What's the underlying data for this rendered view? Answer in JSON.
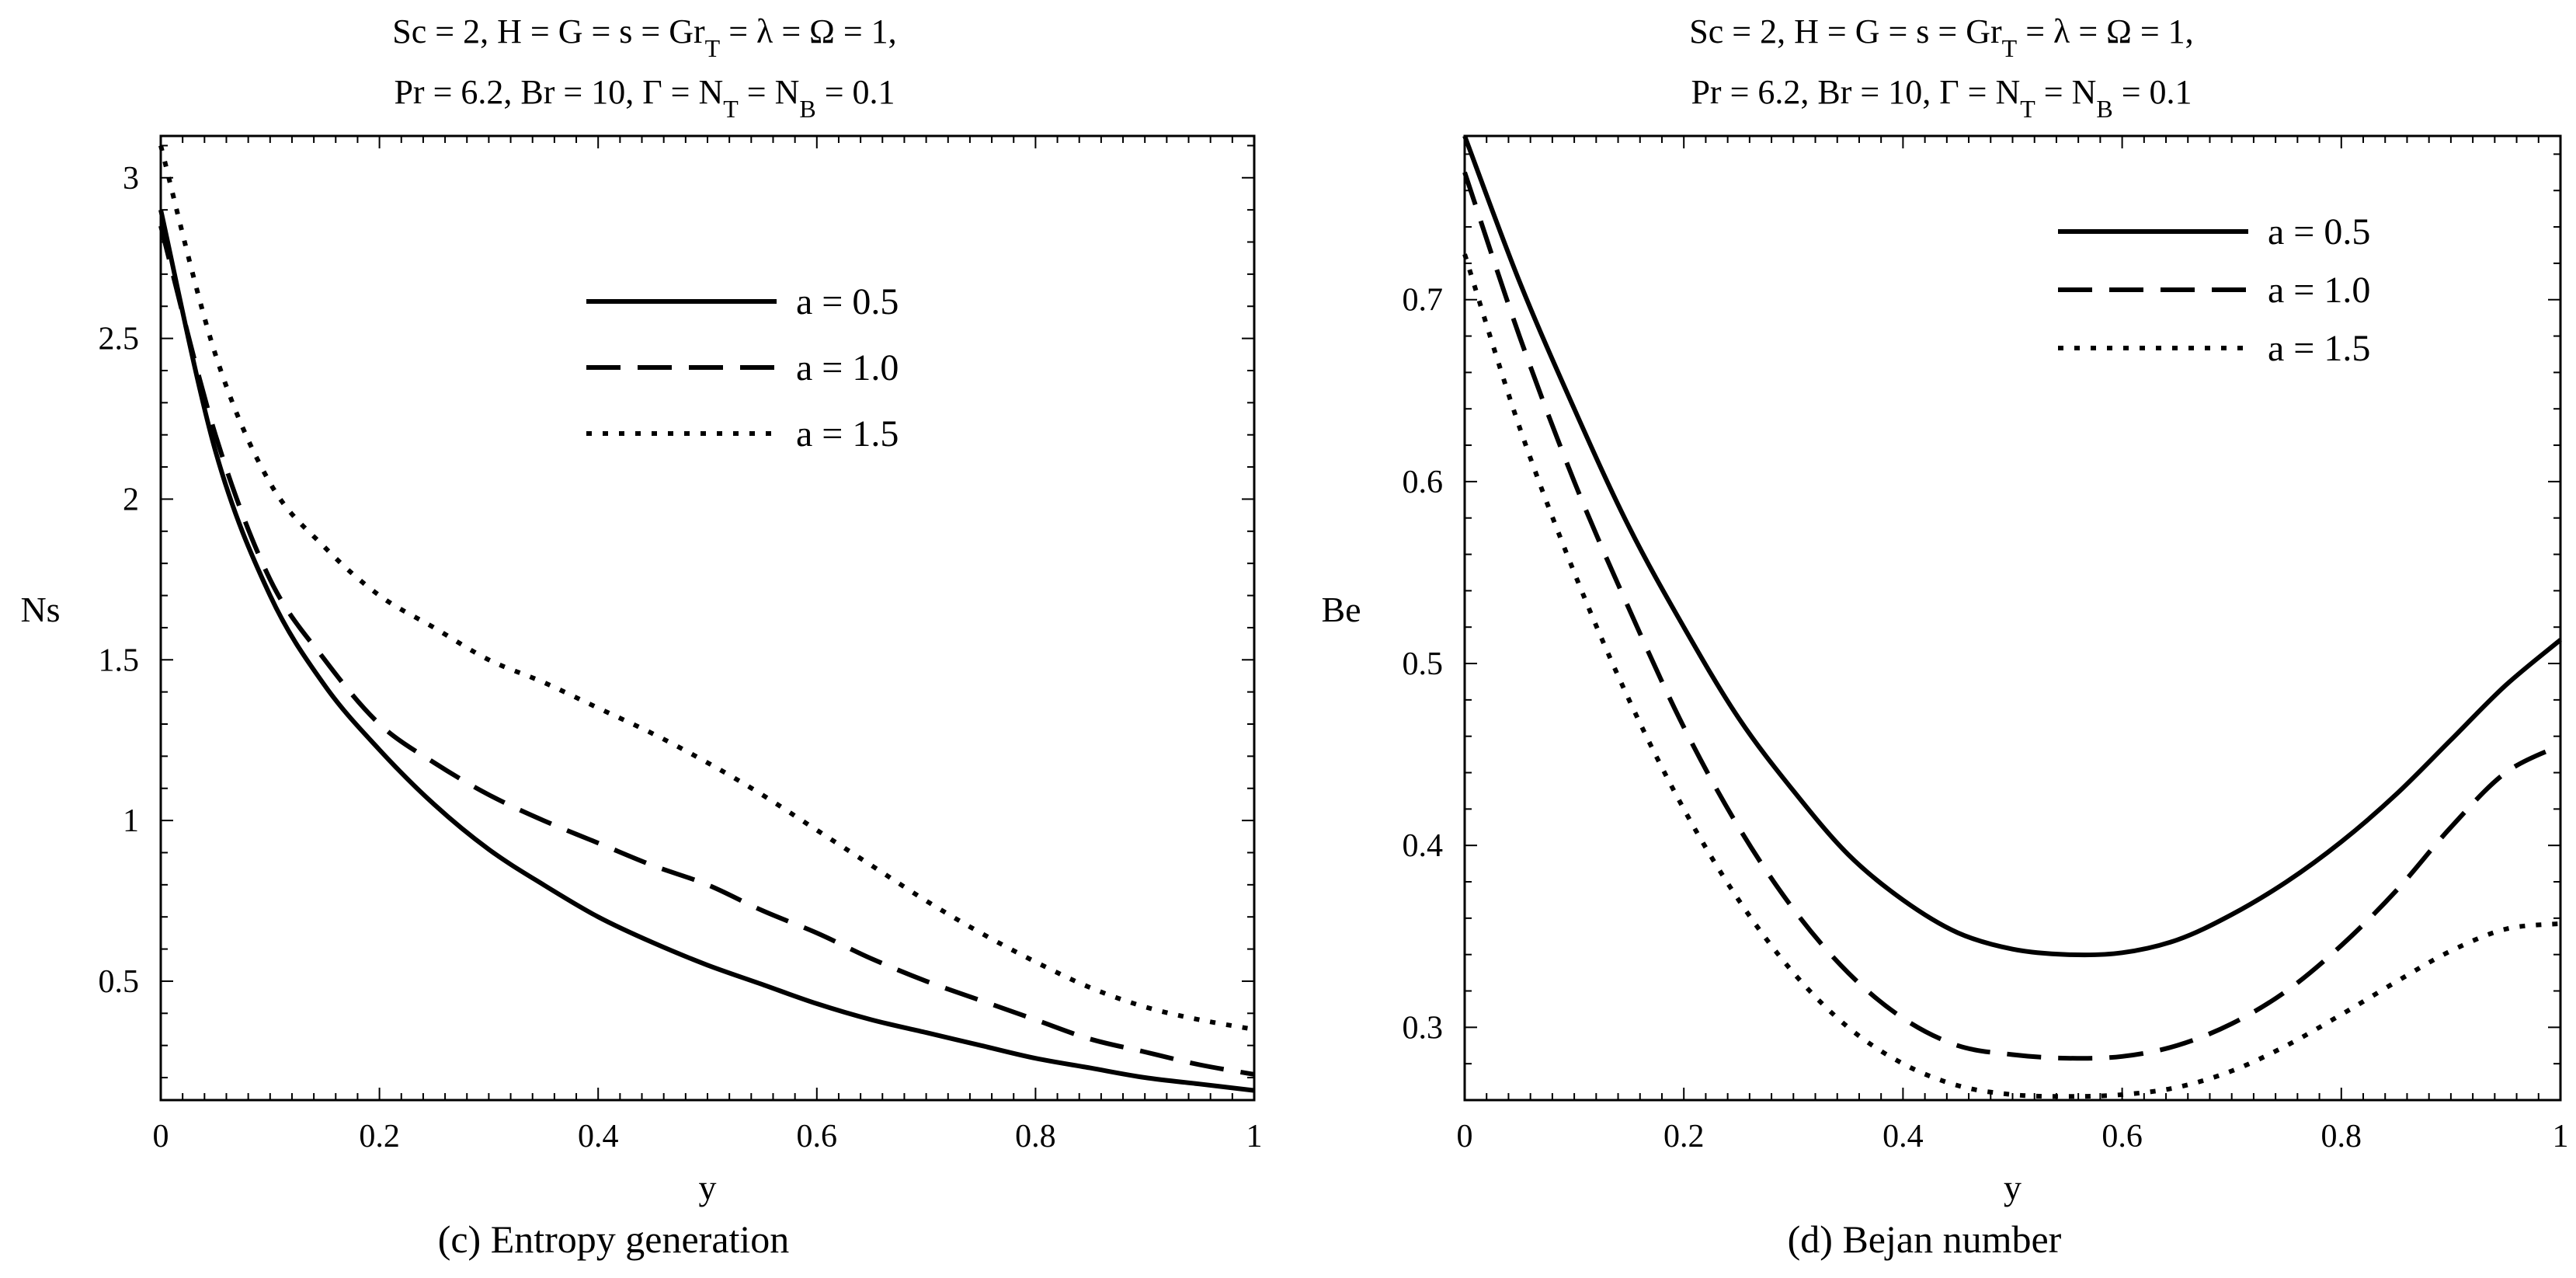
{
  "chart_data": [
    {
      "type": "line",
      "panel_label": "(c)  Entropy generation",
      "title_lines": [
        [
          "Sc = 2, H = G = s = Gr",
          "T",
          " = λ = Ω =  1,"
        ],
        [
          "Pr = 6.2, Br = 10, Γ = N",
          "T",
          " = N",
          "B",
          " = 0.1"
        ]
      ],
      "xlabel": "y",
      "ylabel": "Ns",
      "xlim": [
        0,
        1
      ],
      "ylim": [
        0.13,
        3.13
      ],
      "xticks": [
        0,
        0.2,
        0.4,
        0.6,
        0.8,
        1
      ],
      "xtick_labels": [
        "0",
        "0.2",
        "0.4",
        "0.6",
        "0.8",
        "1"
      ],
      "yticks": [
        0.5,
        1,
        1.5,
        2,
        2.5,
        3
      ],
      "ytick_labels": [
        "0.5",
        "1",
        "1.5",
        "2",
        "2.5",
        "3"
      ],
      "legend_position": "top-right",
      "x": [
        0,
        0.05,
        0.1,
        0.15,
        0.2,
        0.25,
        0.3,
        0.35,
        0.4,
        0.45,
        0.5,
        0.55,
        0.6,
        0.65,
        0.7,
        0.75,
        0.8,
        0.85,
        0.9,
        0.95,
        1.0
      ],
      "series": [
        {
          "name": "a = 0.5",
          "dash": "solid",
          "values": [
            2.9,
            2.15,
            1.7,
            1.42,
            1.22,
            1.05,
            0.91,
            0.8,
            0.7,
            0.62,
            0.55,
            0.49,
            0.43,
            0.38,
            0.34,
            0.3,
            0.26,
            0.23,
            0.2,
            0.18,
            0.16
          ]
        },
        {
          "name": "a = 1.0",
          "dash": "dashed",
          "values": [
            2.85,
            2.2,
            1.75,
            1.5,
            1.3,
            1.18,
            1.08,
            1.0,
            0.93,
            0.86,
            0.8,
            0.72,
            0.65,
            0.57,
            0.5,
            0.44,
            0.38,
            0.32,
            0.28,
            0.24,
            0.21
          ]
        },
        {
          "name": "a = 1.5",
          "dash": "dotted",
          "values": [
            3.1,
            2.45,
            2.05,
            1.85,
            1.7,
            1.6,
            1.5,
            1.43,
            1.35,
            1.27,
            1.18,
            1.08,
            0.97,
            0.86,
            0.75,
            0.65,
            0.56,
            0.48,
            0.42,
            0.38,
            0.35
          ]
        }
      ]
    },
    {
      "type": "line",
      "panel_label": "(d)  Bejan number",
      "title_lines": [
        [
          "Sc = 2, H = G = s = Gr",
          "T",
          " = λ = Ω =  1,"
        ],
        [
          "Pr = 6.2, Br = 10, Γ = N",
          "T",
          " = N",
          "B",
          " = 0.1"
        ]
      ],
      "xlabel": "y",
      "ylabel": "Be",
      "xlim": [
        0,
        1
      ],
      "ylim": [
        0.26,
        0.79
      ],
      "xticks": [
        0,
        0.2,
        0.4,
        0.6,
        0.8,
        1
      ],
      "xtick_labels": [
        "0",
        "0.2",
        "0.4",
        "0.6",
        "0.8",
        "1"
      ],
      "yticks": [
        0.3,
        0.4,
        0.5,
        0.6,
        0.7
      ],
      "ytick_labels": [
        "0.3",
        "0.4",
        "0.5",
        "0.6",
        "0.7"
      ],
      "legend_position": "top-right",
      "x": [
        0,
        0.05,
        0.1,
        0.15,
        0.2,
        0.25,
        0.3,
        0.35,
        0.4,
        0.45,
        0.5,
        0.55,
        0.6,
        0.65,
        0.7,
        0.75,
        0.8,
        0.85,
        0.9,
        0.95,
        1.0
      ],
      "series": [
        {
          "name": "a = 0.5",
          "dash": "solid",
          "values": [
            0.79,
            0.71,
            0.64,
            0.575,
            0.52,
            0.47,
            0.43,
            0.395,
            0.37,
            0.352,
            0.343,
            0.34,
            0.341,
            0.348,
            0.362,
            0.38,
            0.402,
            0.428,
            0.458,
            0.488,
            0.513
          ]
        },
        {
          "name": "a = 1.0",
          "dash": "dashed",
          "values": [
            0.77,
            0.68,
            0.6,
            0.53,
            0.465,
            0.41,
            0.365,
            0.33,
            0.305,
            0.29,
            0.285,
            0.283,
            0.284,
            0.29,
            0.302,
            0.32,
            0.345,
            0.375,
            0.41,
            0.44,
            0.455
          ]
        },
        {
          "name": "a = 1.5",
          "dash": "dotted",
          "values": [
            0.725,
            0.63,
            0.55,
            0.48,
            0.42,
            0.37,
            0.33,
            0.3,
            0.28,
            0.268,
            0.263,
            0.262,
            0.263,
            0.267,
            0.276,
            0.29,
            0.307,
            0.325,
            0.342,
            0.354,
            0.357
          ]
        }
      ]
    }
  ]
}
